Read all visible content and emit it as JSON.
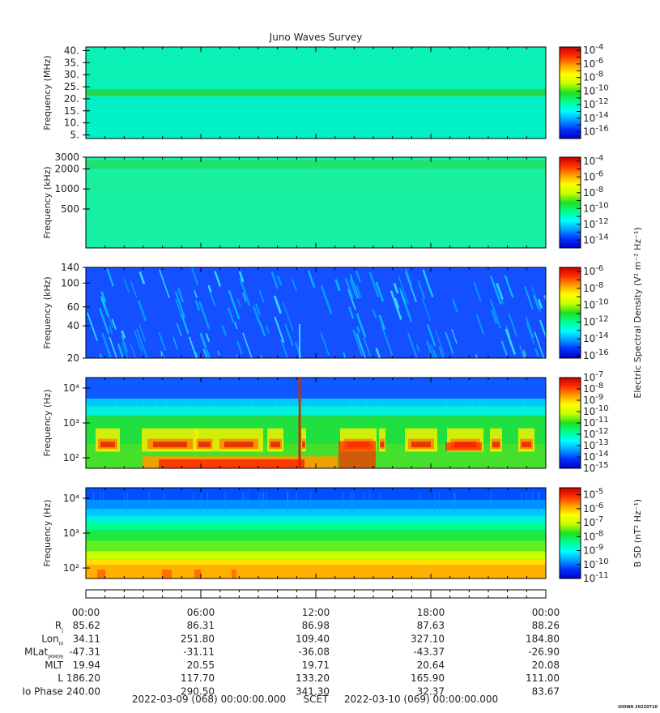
{
  "title": "Juno Waves Survey",
  "colors": {
    "colormap": [
      "#0000c8",
      "#0030ff",
      "#00a0ff",
      "#00ffff",
      "#00ff90",
      "#20e020",
      "#c8ff00",
      "#ffff00",
      "#ffa000",
      "#ff3000",
      "#c80000"
    ]
  },
  "chart_data": [
    {
      "type": "heatmap",
      "name": "panel-hfr-high",
      "ylabel": "Frequency (MHz)",
      "yscale": "linear",
      "ylim": [
        3.5,
        41.5
      ],
      "yticks": [
        "5.",
        "10.",
        "15.",
        "20.",
        "25.",
        "30.",
        "35.",
        "40."
      ],
      "ytick_values": [
        5,
        10,
        15,
        20,
        25,
        30,
        35,
        40
      ],
      "colorbar": {
        "exponents": [
          "-4",
          "-6",
          "-8",
          "-10",
          "-12",
          "-14",
          "-16"
        ],
        "exp_values": [
          -4,
          -6,
          -8,
          -10,
          -12,
          -14,
          -16
        ],
        "range": [
          -17,
          -3.5
        ],
        "label": ""
      }
    },
    {
      "type": "heatmap",
      "name": "panel-hfr-low",
      "ylabel": "Frequency (kHz)",
      "yscale": "log",
      "ylim": [
        130,
        3000
      ],
      "yticks": [
        "3000",
        "2000",
        "1000",
        "500"
      ],
      "ytick_values": [
        3000,
        2000,
        1000,
        500
      ],
      "colorbar": {
        "exponents": [
          "-4",
          "-6",
          "-8",
          "-10",
          "-12",
          "-14"
        ],
        "exp_values": [
          -4,
          -6,
          -8,
          -10,
          -12,
          -14
        ],
        "range": [
          -15,
          -3.5
        ],
        "label": ""
      }
    },
    {
      "type": "heatmap",
      "name": "panel-lfr-high",
      "ylabel": "Frequency (kHz)",
      "yscale": "log",
      "ylim": [
        20,
        140
      ],
      "yticks": [
        "140",
        "100",
        "60",
        "40",
        "20"
      ],
      "ytick_values": [
        140,
        100,
        60,
        40,
        20
      ],
      "colorbar": {
        "exponents": [
          "-6",
          "-8",
          "-10",
          "-12",
          "-14",
          "-16"
        ],
        "exp_values": [
          -6,
          -8,
          -10,
          -12,
          -14,
          -16
        ],
        "range": [
          -16.3,
          -5.5
        ],
        "label": "Electric Spectral Density (V² m⁻² Hz⁻¹)"
      }
    },
    {
      "type": "heatmap",
      "name": "panel-lfr-low",
      "ylabel": "Frequency (Hz)",
      "yscale": "log",
      "ylim": [
        50,
        20000
      ],
      "yticks": [
        "10⁴",
        "10³",
        "10²"
      ],
      "ytick_values": [
        10000,
        1000,
        100
      ],
      "colorbar": {
        "exponents": [
          "-7",
          "-8",
          "-9",
          "-10",
          "-11",
          "-12",
          "-13",
          "-14",
          "-15"
        ],
        "exp_values": [
          -7,
          -8,
          -9,
          -10,
          -11,
          -12,
          -13,
          -14,
          -15
        ],
        "range": [
          -15,
          -7
        ],
        "label": ""
      }
    },
    {
      "type": "heatmap",
      "name": "panel-magnetic",
      "ylabel": "Frequency (Hz)",
      "yscale": "log",
      "ylim": [
        50,
        20000
      ],
      "yticks": [
        "10⁴",
        "10³",
        "10²"
      ],
      "ytick_values": [
        10000,
        1000,
        100
      ],
      "colorbar": {
        "exponents": [
          "-5",
          "-6",
          "-7",
          "-8",
          "-9",
          "-10",
          "-11"
        ],
        "exp_values": [
          -5,
          -6,
          -7,
          -8,
          -9,
          -10,
          -11
        ],
        "range": [
          -11,
          -4.5
        ],
        "label": "B SD (nT² Hz⁻¹)"
      }
    }
  ],
  "time_axis": {
    "ticks": [
      "00:00",
      "06:00",
      "12:00",
      "18:00",
      "00:00"
    ],
    "tick_hours": [
      0,
      6,
      12,
      18,
      24
    ]
  },
  "ephemeris": {
    "rows": [
      {
        "label": "R",
        "sub": "J",
        "values": [
          "85.62",
          "86.31",
          "86.98",
          "87.63",
          "88.26"
        ]
      },
      {
        "label": "Lon",
        "sub": "III",
        "values": [
          "34.11",
          "251.80",
          "109.40",
          "327.10",
          "184.80"
        ]
      },
      {
        "label": "MLat",
        "sub": "JRM09",
        "values": [
          "-47.31",
          "-31.11",
          "-36.08",
          "-43.37",
          "-26.90"
        ]
      },
      {
        "label": "MLT",
        "sub": "",
        "values": [
          "19.94",
          "20.55",
          "19.71",
          "20.64",
          "20.08"
        ]
      },
      {
        "label": "L",
        "sub": "",
        "values": [
          "186.20",
          "117.70",
          "133.20",
          "165.90",
          "111.00"
        ]
      },
      {
        "label": "Io Phase",
        "sub": "",
        "values": [
          "240.00",
          "290.50",
          "341.30",
          "32.37",
          "83.67"
        ]
      }
    ]
  },
  "footer": {
    "start": "2022-03-09 (068) 00:00:00.000",
    "scet": "SCET",
    "end": "2022-03-10 (069) 00:00:00.000"
  },
  "stamp": "UIOWA 20220710"
}
